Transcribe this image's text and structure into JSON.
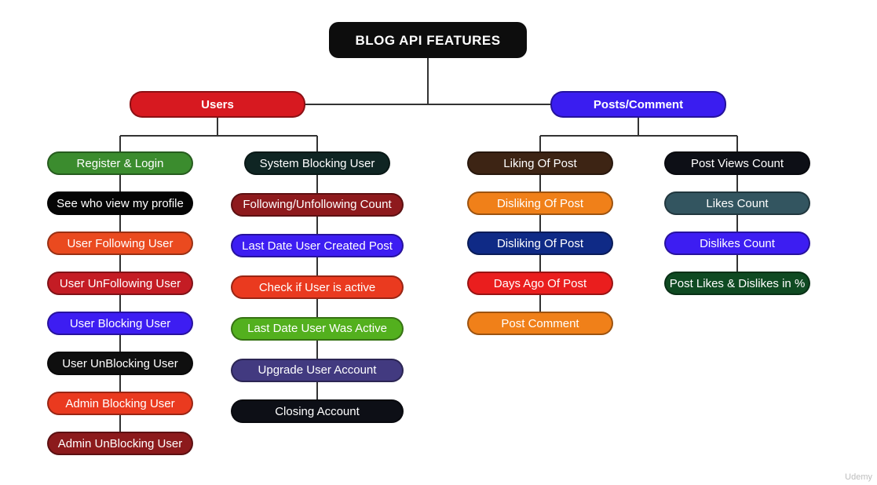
{
  "title": {
    "label": "BLOG API FEATURES",
    "color": "#0d0d0d"
  },
  "groups": {
    "users": {
      "label": "Users",
      "color": "#d71920"
    },
    "posts": {
      "label": "Posts/Comment",
      "color": "#3a1df0"
    }
  },
  "columns": {
    "users_left": [
      {
        "label": "Register & Login",
        "color": "#3b8c2e"
      },
      {
        "label": "See who view my profile",
        "color": "#050505"
      },
      {
        "label": "User Following User",
        "color": "#ea4a1f"
      },
      {
        "label": "User UnFollowing User",
        "color": "#c41c24"
      },
      {
        "label": "User Blocking User",
        "color": "#3d1df2"
      },
      {
        "label": "User UnBlocking User",
        "color": "#0f0f0f"
      },
      {
        "label": "Admin Blocking User",
        "color": "#ea3a1f"
      },
      {
        "label": "Admin UnBlocking User",
        "color": "#8c1a1c"
      }
    ],
    "users_right": [
      {
        "label": "System Blocking User",
        "color": "#0f2523"
      },
      {
        "label": "Following/Unfollowing Count",
        "color": "#8e1a1d"
      },
      {
        "label": "Last Date User Created Post",
        "color": "#3d1df2"
      },
      {
        "label": "Check if User is active",
        "color": "#ea3a1f"
      },
      {
        "label": "Last Date User Was Active",
        "color": "#53b01e"
      },
      {
        "label": "Upgrade User Account",
        "color": "#423a80"
      },
      {
        "label": "Closing Account",
        "color": "#0d0f16"
      }
    ],
    "posts_left": [
      {
        "label": "Liking Of Post",
        "color": "#3d2414"
      },
      {
        "label": "Disliking Of Post",
        "color": "#f08019"
      },
      {
        "label": "Disliking Of Post",
        "color": "#0f2a86"
      },
      {
        "label": "Days Ago Of Post",
        "color": "#ea1e1e"
      },
      {
        "label": "Post Comment",
        "color": "#f08019"
      }
    ],
    "posts_right": [
      {
        "label": "Post Views Count",
        "color": "#0d0f16"
      },
      {
        "label": "Likes Count",
        "color": "#335560"
      },
      {
        "label": "Dislikes Count",
        "color": "#3d1df2"
      },
      {
        "label": "Post Likes & Dislikes in %",
        "color": "#0f4a22"
      }
    ]
  },
  "watermark": "Udemy"
}
